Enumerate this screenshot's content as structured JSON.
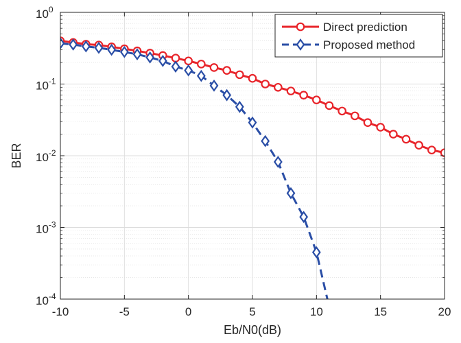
{
  "chart_data": {
    "type": "line",
    "title": "",
    "xlabel": "Eb/N0(dB)",
    "ylabel": "BER",
    "xlim": [
      -10,
      20
    ],
    "ylim": [
      0.0001,
      1
    ],
    "yscale": "log",
    "grid": true,
    "minor_grid": true,
    "legend_position": "top-right",
    "x_ticks": [
      -10,
      -5,
      0,
      5,
      10,
      15,
      20
    ],
    "x_tick_labels": [
      "-10",
      "-5",
      "0",
      "5",
      "10",
      "15",
      "20"
    ],
    "y_ticks": [
      0.0001,
      0.001,
      0.01,
      0.1,
      1
    ],
    "y_tick_labels": [
      {
        "base": "10",
        "exp": "-4"
      },
      {
        "base": "10",
        "exp": "-3"
      },
      {
        "base": "10",
        "exp": "-2"
      },
      {
        "base": "10",
        "exp": "-1"
      },
      {
        "base": "10",
        "exp": "0"
      }
    ],
    "series": [
      {
        "name": "Direct prediction",
        "color": "#e8242a",
        "line_style": "solid",
        "marker": "circle",
        "x": [
          -10,
          -9,
          -8,
          -7,
          -6,
          -5,
          -4,
          -3,
          -2,
          -1,
          0,
          1,
          2,
          3,
          4,
          5,
          6,
          7,
          8,
          9,
          10,
          11,
          12,
          13,
          14,
          15,
          16,
          17,
          18,
          19,
          20
        ],
        "y": [
          0.4,
          0.38,
          0.36,
          0.35,
          0.33,
          0.31,
          0.29,
          0.27,
          0.25,
          0.23,
          0.21,
          0.19,
          0.17,
          0.155,
          0.135,
          0.12,
          0.1,
          0.09,
          0.08,
          0.07,
          0.06,
          0.05,
          0.042,
          0.036,
          0.029,
          0.025,
          0.02,
          0.017,
          0.014,
          0.012,
          0.011
        ]
      },
      {
        "name": "Proposed method",
        "color": "#2a4ea6",
        "line_style": "dashed",
        "marker": "diamond",
        "x": [
          -10,
          -9,
          -8,
          -7,
          -6,
          -5,
          -4,
          -3,
          -2,
          -1,
          0,
          1,
          2,
          3,
          4,
          5,
          6,
          7,
          8,
          9,
          10
        ],
        "y": [
          0.37,
          0.355,
          0.335,
          0.32,
          0.3,
          0.28,
          0.26,
          0.235,
          0.21,
          0.175,
          0.155,
          0.13,
          0.095,
          0.07,
          0.048,
          0.029,
          0.016,
          0.0082,
          0.003,
          0.0014,
          0.00045
        ],
        "line_extends_to": {
          "x": 10.85,
          "y": 0.0001
        }
      }
    ]
  }
}
